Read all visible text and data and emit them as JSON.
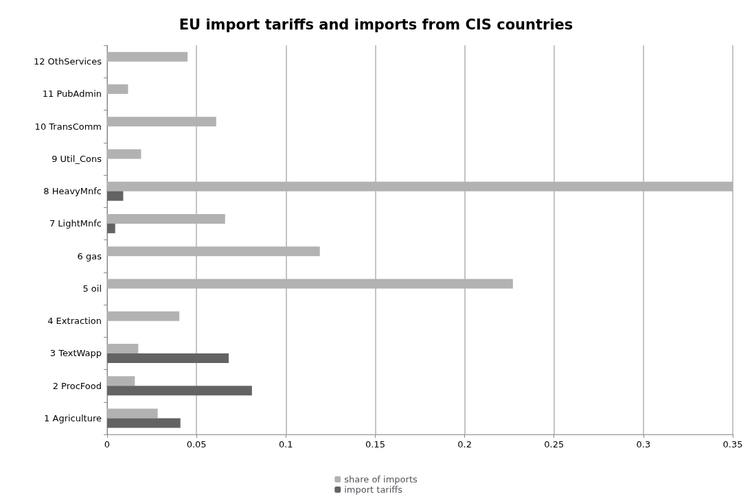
{
  "chart_data": {
    "type": "bar",
    "orientation": "horizontal",
    "title": "EU import tariffs and imports from CIS countries",
    "categories": [
      "12 OthServices",
      "11 PubAdmin",
      "10 TransComm",
      "9 Util_Cons",
      "8 HeavyMnfc",
      "7 LightMnfc",
      "6 gas",
      "5 oil",
      "4 Extraction",
      "3 TextWapp",
      "2 ProcFood",
      "1 Agriculture"
    ],
    "series": [
      {
        "name": "share of imports",
        "color": "#b2b2b2",
        "values": [
          0.045,
          0.0117,
          0.061,
          0.019,
          0.35,
          0.066,
          0.119,
          0.227,
          0.0404,
          0.0174,
          0.0155,
          0.0283
        ]
      },
      {
        "name": "import tariffs",
        "color": "#636363",
        "values": [
          0,
          0,
          0,
          0,
          0.009,
          0.0045,
          0,
          0,
          0,
          0.068,
          0.081,
          0.041
        ]
      }
    ],
    "xlim": [
      0,
      0.35
    ],
    "xticks": [
      0,
      0.05,
      0.1,
      0.15,
      0.2,
      0.25,
      0.3,
      0.35
    ],
    "grid": "x",
    "legend": "bottom"
  }
}
